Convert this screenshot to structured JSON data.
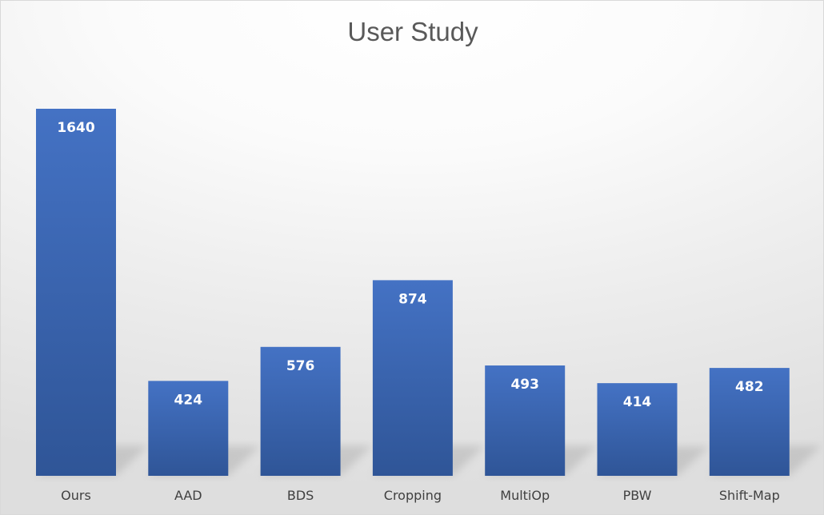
{
  "chart_data": {
    "type": "bar",
    "title": "User Study",
    "categories": [
      "Ours",
      "AAD",
      "BDS",
      "Cropping",
      "MultiOp",
      "PBW",
      "Shift-Map"
    ],
    "values": [
      1640,
      424,
      576,
      874,
      493,
      414,
      482
    ],
    "data_labels": [
      "1640",
      "424",
      "576",
      "874",
      "493",
      "414",
      "482"
    ],
    "xlabel": "",
    "ylabel": "",
    "ylim": [
      0,
      1640
    ],
    "grid": false,
    "legend": "none",
    "bar_color": "#4472c4"
  }
}
